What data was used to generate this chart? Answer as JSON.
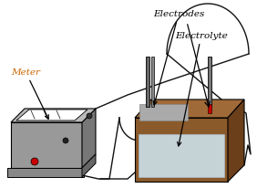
{
  "background_color": "#ffffff",
  "meter_label": "Meter",
  "electrodes_label": "Electrodes",
  "electrolyte_label": "Electrolyte",
  "meter_body_color": "#999999",
  "meter_top_color": "#bbbbbb",
  "meter_side_color": "#777777",
  "meter_screen_color": "#ffffff",
  "container_front_color": "#8B5A2B",
  "container_top_color": "#a06a38",
  "container_side_color": "#6B3F1A",
  "fluid_color": "#d0e8f5",
  "inner_wall_color": "#aaaaaa",
  "electrode_dark": "#555555",
  "electrode_red": "#cc0000",
  "wire_color": "#111111",
  "label_color": "#000000",
  "figsize": [
    2.82,
    2.07
  ],
  "dpi": 100
}
